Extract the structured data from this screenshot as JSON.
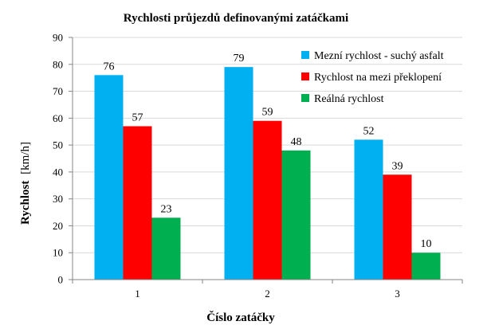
{
  "chart_data": {
    "type": "bar",
    "title": "Rychlosti průjezdů definovanými zatáčkami",
    "xlabel": "Číslo zatáčky",
    "ylabel_bold": "Rychlost",
    "ylabel_unit": "[km/h]",
    "categories": [
      "1",
      "2",
      "3"
    ],
    "series": [
      {
        "name": "Mezní rychlost - suchý asfalt",
        "color": "#00B0F0",
        "values": [
          76,
          79,
          52
        ]
      },
      {
        "name": "Rychlost na mezi překlopení",
        "color": "#FF0000",
        "values": [
          57,
          59,
          39
        ]
      },
      {
        "name": "Reálná rychlost",
        "color": "#00B050",
        "values": [
          23,
          48,
          10
        ]
      }
    ],
    "ylim": [
      0,
      90
    ],
    "yticks": [
      0,
      10,
      20,
      30,
      40,
      50,
      60,
      70,
      80,
      90
    ],
    "grid": true,
    "legend_position": "top-right",
    "data_labels": true
  }
}
